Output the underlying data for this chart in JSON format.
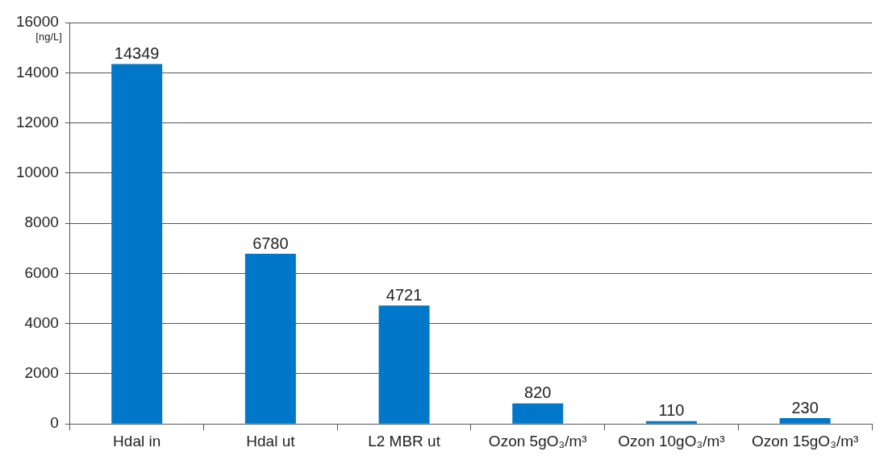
{
  "chart_data": {
    "type": "bar",
    "ylabel": "[ng/L]",
    "categories": [
      "Hdal in",
      "Hdal ut",
      "L2 MBR ut",
      "Ozon 5gO₃/m³",
      "Ozon 10gO₃/m³",
      "Ozon 15gO₃/m³"
    ],
    "values": [
      14349,
      6780,
      4721,
      820,
      110,
      230
    ],
    "color": "#0077c8",
    "ylim": [
      0,
      16000
    ],
    "yticks": [
      0,
      2000,
      4000,
      6000,
      8000,
      10000,
      12000,
      14000,
      16000
    ],
    "grid": "y",
    "legend": false,
    "data_labels": true
  }
}
